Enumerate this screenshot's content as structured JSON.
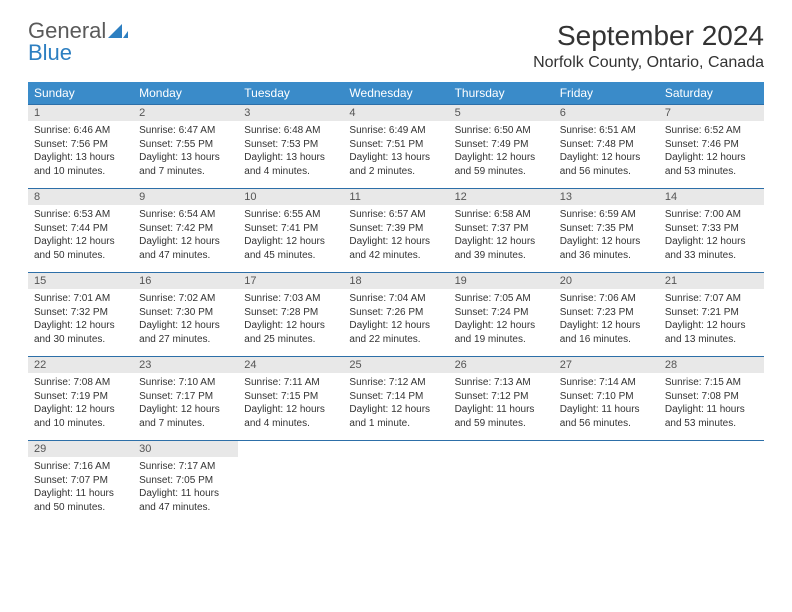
{
  "brand": {
    "first": "General",
    "second": "Blue"
  },
  "title": "September 2024",
  "location": "Norfolk County, Ontario, Canada",
  "colors": {
    "header_bg": "#3a8bc9",
    "header_text": "#ffffff",
    "daynum_bg": "#e8e8e8",
    "row_border": "#2d6fa8",
    "logo_gray": "#5a5a5a",
    "logo_blue": "#2d7fc1"
  },
  "weekdays": [
    "Sunday",
    "Monday",
    "Tuesday",
    "Wednesday",
    "Thursday",
    "Friday",
    "Saturday"
  ],
  "weeks": [
    [
      {
        "n": "1",
        "sr": "6:46 AM",
        "ss": "7:56 PM",
        "dl": "13 hours and 10 minutes."
      },
      {
        "n": "2",
        "sr": "6:47 AM",
        "ss": "7:55 PM",
        "dl": "13 hours and 7 minutes."
      },
      {
        "n": "3",
        "sr": "6:48 AM",
        "ss": "7:53 PM",
        "dl": "13 hours and 4 minutes."
      },
      {
        "n": "4",
        "sr": "6:49 AM",
        "ss": "7:51 PM",
        "dl": "13 hours and 2 minutes."
      },
      {
        "n": "5",
        "sr": "6:50 AM",
        "ss": "7:49 PM",
        "dl": "12 hours and 59 minutes."
      },
      {
        "n": "6",
        "sr": "6:51 AM",
        "ss": "7:48 PM",
        "dl": "12 hours and 56 minutes."
      },
      {
        "n": "7",
        "sr": "6:52 AM",
        "ss": "7:46 PM",
        "dl": "12 hours and 53 minutes."
      }
    ],
    [
      {
        "n": "8",
        "sr": "6:53 AM",
        "ss": "7:44 PM",
        "dl": "12 hours and 50 minutes."
      },
      {
        "n": "9",
        "sr": "6:54 AM",
        "ss": "7:42 PM",
        "dl": "12 hours and 47 minutes."
      },
      {
        "n": "10",
        "sr": "6:55 AM",
        "ss": "7:41 PM",
        "dl": "12 hours and 45 minutes."
      },
      {
        "n": "11",
        "sr": "6:57 AM",
        "ss": "7:39 PM",
        "dl": "12 hours and 42 minutes."
      },
      {
        "n": "12",
        "sr": "6:58 AM",
        "ss": "7:37 PM",
        "dl": "12 hours and 39 minutes."
      },
      {
        "n": "13",
        "sr": "6:59 AM",
        "ss": "7:35 PM",
        "dl": "12 hours and 36 minutes."
      },
      {
        "n": "14",
        "sr": "7:00 AM",
        "ss": "7:33 PM",
        "dl": "12 hours and 33 minutes."
      }
    ],
    [
      {
        "n": "15",
        "sr": "7:01 AM",
        "ss": "7:32 PM",
        "dl": "12 hours and 30 minutes."
      },
      {
        "n": "16",
        "sr": "7:02 AM",
        "ss": "7:30 PM",
        "dl": "12 hours and 27 minutes."
      },
      {
        "n": "17",
        "sr": "7:03 AM",
        "ss": "7:28 PM",
        "dl": "12 hours and 25 minutes."
      },
      {
        "n": "18",
        "sr": "7:04 AM",
        "ss": "7:26 PM",
        "dl": "12 hours and 22 minutes."
      },
      {
        "n": "19",
        "sr": "7:05 AM",
        "ss": "7:24 PM",
        "dl": "12 hours and 19 minutes."
      },
      {
        "n": "20",
        "sr": "7:06 AM",
        "ss": "7:23 PM",
        "dl": "12 hours and 16 minutes."
      },
      {
        "n": "21",
        "sr": "7:07 AM",
        "ss": "7:21 PM",
        "dl": "12 hours and 13 minutes."
      }
    ],
    [
      {
        "n": "22",
        "sr": "7:08 AM",
        "ss": "7:19 PM",
        "dl": "12 hours and 10 minutes."
      },
      {
        "n": "23",
        "sr": "7:10 AM",
        "ss": "7:17 PM",
        "dl": "12 hours and 7 minutes."
      },
      {
        "n": "24",
        "sr": "7:11 AM",
        "ss": "7:15 PM",
        "dl": "12 hours and 4 minutes."
      },
      {
        "n": "25",
        "sr": "7:12 AM",
        "ss": "7:14 PM",
        "dl": "12 hours and 1 minute."
      },
      {
        "n": "26",
        "sr": "7:13 AM",
        "ss": "7:12 PM",
        "dl": "11 hours and 59 minutes."
      },
      {
        "n": "27",
        "sr": "7:14 AM",
        "ss": "7:10 PM",
        "dl": "11 hours and 56 minutes."
      },
      {
        "n": "28",
        "sr": "7:15 AM",
        "ss": "7:08 PM",
        "dl": "11 hours and 53 minutes."
      }
    ],
    [
      {
        "n": "29",
        "sr": "7:16 AM",
        "ss": "7:07 PM",
        "dl": "11 hours and 50 minutes."
      },
      {
        "n": "30",
        "sr": "7:17 AM",
        "ss": "7:05 PM",
        "dl": "11 hours and 47 minutes."
      },
      null,
      null,
      null,
      null,
      null
    ]
  ],
  "labels": {
    "sunrise": "Sunrise:",
    "sunset": "Sunset:",
    "daylight": "Daylight:"
  }
}
